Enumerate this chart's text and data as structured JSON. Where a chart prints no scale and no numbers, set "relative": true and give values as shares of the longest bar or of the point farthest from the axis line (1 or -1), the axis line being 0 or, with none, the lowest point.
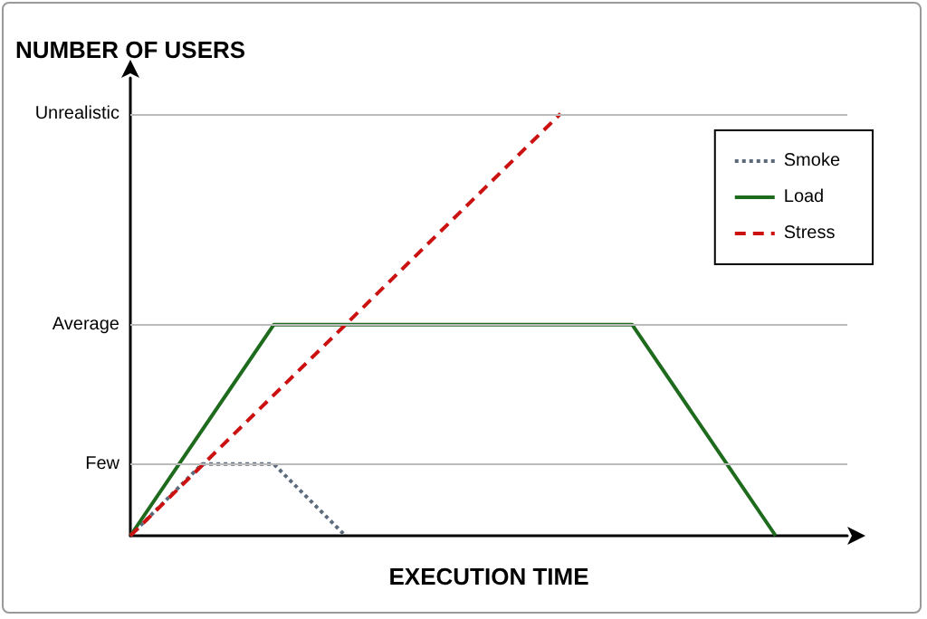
{
  "chart_data": {
    "type": "line",
    "xlabel": "EXECUTION TIME",
    "ylabel": "NUMBER OF USERS",
    "relative": true,
    "categories": [
      null,
      null,
      null,
      null,
      null,
      null,
      null,
      null,
      null,
      null,
      null
    ],
    "ref_lines": [
      {
        "axis": "y",
        "value": 0.17,
        "label": "Few",
        "color": "#bbbbbb"
      },
      {
        "axis": "y",
        "value": 0.5,
        "label": "Average",
        "color": "#bbbbbb"
      },
      {
        "axis": "y",
        "value": 1,
        "label": "Unrealistic",
        "color": "#bbbbbb"
      }
    ],
    "legend": "top right",
    "marker": "none",
    "series": [
      {
        "name": "Smoke",
        "color": "#5b6b7b",
        "line_style": "dotted",
        "values": [
          0,
          0.17,
          0.17,
          0,
          null,
          null,
          null,
          null,
          null,
          null,
          null
        ]
      },
      {
        "name": "Load",
        "color": "#1e6b1e",
        "line_style": "solid",
        "values": [
          0,
          null,
          0.5,
          null,
          null,
          null,
          null,
          0.5,
          null,
          0,
          null
        ]
      },
      {
        "name": "Stress",
        "color": "#cc1111",
        "line_style": "dashed",
        "values": [
          0,
          null,
          null,
          null,
          null,
          null,
          1,
          null,
          null,
          null,
          null
        ]
      }
    ]
  }
}
